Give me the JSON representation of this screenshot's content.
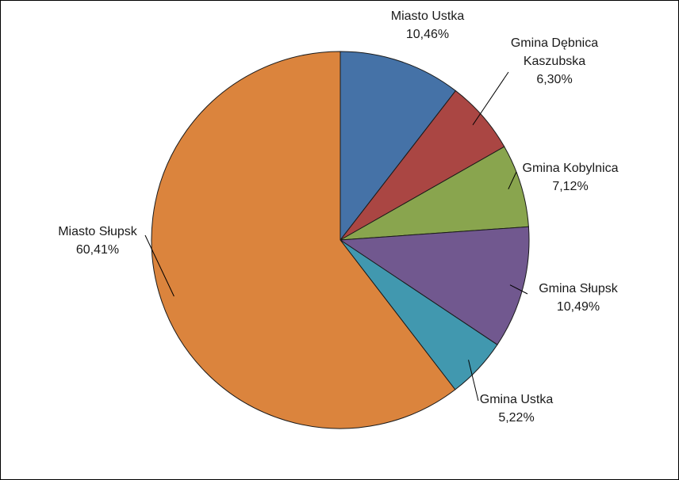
{
  "chart_data": {
    "type": "pie",
    "start_angle_deg": 0,
    "direction": "clockwise",
    "slices": [
      {
        "name_lines": [
          "Miasto Ustka"
        ],
        "value": 10.46,
        "label": "10,46%",
        "color": "#4572a7"
      },
      {
        "name_lines": [
          "Gmina Dębnica",
          "Kaszubska"
        ],
        "value": 6.3,
        "label": "6,30%",
        "color": "#aa4643"
      },
      {
        "name_lines": [
          "Gmina Kobylnica"
        ],
        "value": 7.12,
        "label": "7,12%",
        "color": "#89a54e"
      },
      {
        "name_lines": [
          "Gmina Słupsk"
        ],
        "value": 10.49,
        "label": "10,49%",
        "color": "#71588f"
      },
      {
        "name_lines": [
          "Gmina Ustka"
        ],
        "value": 5.22,
        "label": "5,22%",
        "color": "#4198af"
      },
      {
        "name_lines": [
          "Miasto Słupsk"
        ],
        "value": 60.41,
        "label": "60,41%",
        "color": "#db843d"
      }
    ]
  }
}
